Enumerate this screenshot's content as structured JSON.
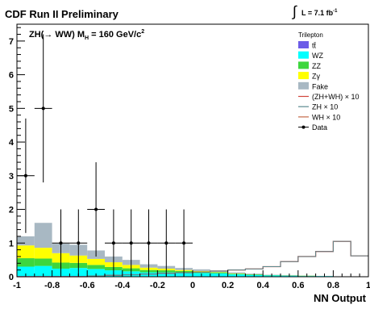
{
  "chart_data": {
    "type": "bar",
    "stacked": true,
    "header_left": "CDF Run II Preliminary",
    "header_right": {
      "integral_sign": "∫",
      "lumi_text": "L = 7.1 fb",
      "lumi_exp": "-1"
    },
    "inner_title": {
      "main": "ZH(→ WW) M",
      "sub": "H",
      "rest": " = 160 GeV/c",
      "sup": "2"
    },
    "xlabel": "NN Output",
    "ylabel": "",
    "xlim": [
      -1,
      1
    ],
    "ylim": [
      0,
      7.5
    ],
    "x_ticks": [
      -1,
      -0.8,
      -0.6,
      -0.4,
      -0.2,
      0,
      0.2,
      0.4,
      0.6,
      0.8,
      1
    ],
    "x_tick_labels": [
      "-1",
      "-0.8",
      "-0.6",
      "-0.4",
      "-0.2",
      "0",
      "0.2",
      "0.4",
      "0.6",
      "0.8",
      "1"
    ],
    "y_ticks": [
      0,
      1,
      2,
      3,
      4,
      5,
      6,
      7
    ],
    "y_tick_labels": [
      "0",
      "1",
      "2",
      "3",
      "4",
      "5",
      "6",
      "7"
    ],
    "grid": false,
    "legend": {
      "placement": "top-right",
      "header": "Trilepton",
      "entries": [
        {
          "label": "tt̄",
          "kind": "fill",
          "color": "#6c5ce7"
        },
        {
          "label": "WZ",
          "kind": "fill",
          "color": "#00ffff"
        },
        {
          "label": "ZZ",
          "kind": "fill",
          "color": "#3dd63d"
        },
        {
          "label": "Zγ",
          "kind": "fill",
          "color": "#ffff00"
        },
        {
          "label": "Fake",
          "kind": "fill",
          "color": "#a8b8c3"
        },
        {
          "label": "(ZH+WH) × 10",
          "kind": "line",
          "color": "#d1453b"
        },
        {
          "label": "ZH × 10",
          "kind": "line",
          "color": "#5b8a8f"
        },
        {
          "label": "WH × 10",
          "kind": "line",
          "color": "#c46a48"
        },
        {
          "label": "Data",
          "kind": "marker",
          "color": "#000000"
        }
      ]
    },
    "bin_edges": [
      -1.0,
      -0.9,
      -0.8,
      -0.7,
      -0.6,
      -0.5,
      -0.4,
      -0.3,
      -0.2,
      -0.1,
      0.0,
      0.1,
      0.2,
      0.3,
      0.4,
      0.5,
      0.6,
      0.7,
      0.8,
      0.9,
      1.0
    ],
    "stack_order": [
      "tt̄",
      "WZ",
      "ZZ",
      "Zγ",
      "Fake"
    ],
    "series": [
      {
        "name": "tt̄",
        "values": [
          0.02,
          0.02,
          0.02,
          0.02,
          0.01,
          0.01,
          0.01,
          0.01,
          0.01,
          0.01,
          0.01,
          0.01,
          0.0,
          0.0,
          0.0,
          0.0,
          0.0,
          0.0,
          0.0,
          0.0
        ]
      },
      {
        "name": "WZ",
        "values": [
          0.28,
          0.3,
          0.22,
          0.24,
          0.22,
          0.18,
          0.15,
          0.12,
          0.12,
          0.11,
          0.1,
          0.09,
          0.07,
          0.05,
          0.04,
          0.03,
          0.02,
          0.02,
          0.01,
          0.01
        ]
      },
      {
        "name": "ZZ",
        "values": [
          0.25,
          0.22,
          0.18,
          0.15,
          0.12,
          0.1,
          0.09,
          0.07,
          0.06,
          0.05,
          0.04,
          0.03,
          0.02,
          0.02,
          0.01,
          0.01,
          0.01,
          0.0,
          0.0,
          0.0
        ]
      },
      {
        "name": "Zγ",
        "values": [
          0.38,
          0.32,
          0.28,
          0.22,
          0.18,
          0.14,
          0.1,
          0.07,
          0.05,
          0.03,
          0.02,
          0.01,
          0.01,
          0.0,
          0.0,
          0.0,
          0.0,
          0.0,
          0.0,
          0.0
        ]
      },
      {
        "name": "Fake",
        "values": [
          0.27,
          0.74,
          0.28,
          0.32,
          0.25,
          0.17,
          0.15,
          0.1,
          0.08,
          0.06,
          0.05,
          0.03,
          0.03,
          0.02,
          0.01,
          0.01,
          0.0,
          0.0,
          0.0,
          0.0
        ]
      }
    ],
    "signal_lines": [
      {
        "name": "(ZH+WH) × 10",
        "values": [
          0.0,
          0.0,
          0.0,
          0.0,
          0.02,
          0.04,
          0.06,
          0.08,
          0.1,
          0.12,
          0.14,
          0.17,
          0.2,
          0.23,
          0.3,
          0.45,
          0.6,
          0.75,
          1.05,
          0.62
        ]
      },
      {
        "name": "ZH × 10",
        "values": [
          0.0,
          0.0,
          0.0,
          0.0,
          0.02,
          0.04,
          0.06,
          0.08,
          0.1,
          0.12,
          0.14,
          0.17,
          0.2,
          0.23,
          0.3,
          0.45,
          0.6,
          0.75,
          1.05,
          0.62
        ]
      },
      {
        "name": "WH × 10",
        "values": [
          0.0,
          0.0,
          0.0,
          0.0,
          0.0,
          0.0,
          0.0,
          0.0,
          0.0,
          0.0,
          0.0,
          0.0,
          0.0,
          0.0,
          0.0,
          0.0,
          0.0,
          0.0,
          0.0,
          0.0
        ]
      }
    ],
    "data_points": [
      {
        "x": -0.95,
        "y": 3,
        "err": 1.7
      },
      {
        "x": -0.85,
        "y": 5,
        "err": 2.2
      },
      {
        "x": -0.75,
        "y": 1,
        "err": 1.0
      },
      {
        "x": -0.65,
        "y": 1,
        "err": 1.0
      },
      {
        "x": -0.55,
        "y": 2,
        "err": 1.4
      },
      {
        "x": -0.45,
        "y": 1,
        "err": 1.0
      },
      {
        "x": -0.35,
        "y": 1,
        "err": 1.0
      },
      {
        "x": -0.25,
        "y": 1,
        "err": 1.0
      },
      {
        "x": -0.15,
        "y": 1,
        "err": 1.0
      },
      {
        "x": -0.05,
        "y": 1,
        "err": 1.0
      }
    ],
    "colors": {
      "tt": "#6c5ce7",
      "wz": "#00ffff",
      "zz": "#3dd63d",
      "zg": "#ffff00",
      "fake": "#a8b8c3",
      "sig_total": "#d1453b",
      "sig_zh": "#5b8a8f",
      "sig_wh": "#c46a48",
      "data": "#000000"
    }
  }
}
